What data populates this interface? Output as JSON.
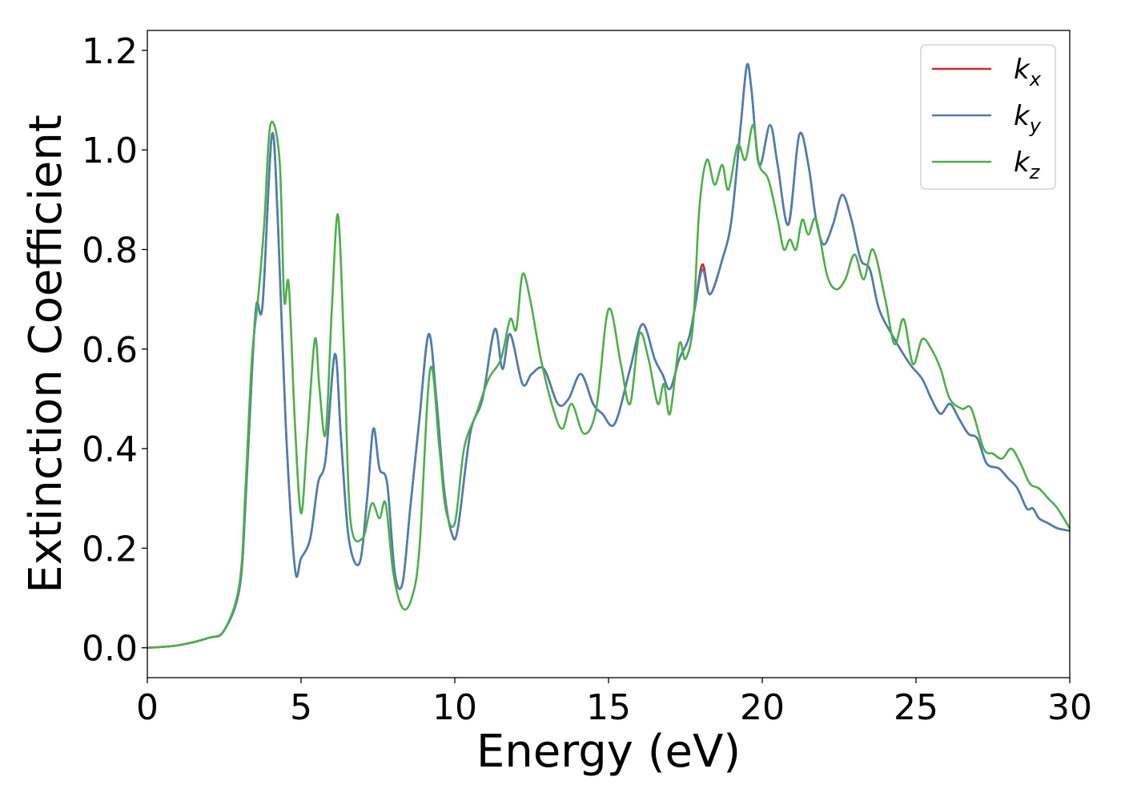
{
  "chart_data": {
    "type": "line",
    "title": "",
    "xlabel": "Energy (eV)",
    "ylabel": "Extinction Coefficient",
    "xlim": [
      0,
      30
    ],
    "ylim": [
      -0.06,
      1.24
    ],
    "xticks": [
      0,
      5,
      10,
      15,
      20,
      25,
      30
    ],
    "xtick_labels": [
      "0",
      "5",
      "10",
      "15",
      "20",
      "25",
      "30"
    ],
    "yticks": [
      0.0,
      0.2,
      0.4,
      0.6,
      0.8,
      1.0,
      1.2
    ],
    "ytick_labels": [
      "0.0",
      "0.2",
      "0.4",
      "0.6",
      "0.8",
      "1.0",
      "1.2"
    ],
    "grid": false,
    "legend_position": "top-right",
    "series": [
      {
        "name": "kx",
        "legend_base": "k",
        "legend_sub": "x",
        "color": "#d62728",
        "x": [
          0,
          1,
          2,
          2.5,
          3.0,
          3.2,
          3.4,
          3.55,
          3.75,
          4.05,
          4.25,
          4.5,
          4.8,
          5.0,
          5.3,
          5.55,
          5.8,
          6.1,
          6.3,
          6.55,
          6.9,
          7.15,
          7.35,
          7.55,
          7.8,
          8.05,
          8.3,
          8.55,
          8.85,
          9.15,
          9.4,
          9.65,
          9.9,
          10.1,
          10.5,
          10.9,
          11.3,
          11.55,
          11.8,
          12.2,
          12.5,
          12.9,
          13.35,
          13.7,
          14.1,
          14.5,
          14.8,
          15.2,
          15.7,
          16.1,
          16.5,
          16.75,
          17.0,
          17.3,
          17.6,
          17.8,
          18.05,
          18.3,
          18.7,
          19.0,
          19.3,
          19.5,
          19.65,
          19.9,
          20.25,
          20.5,
          20.85,
          21.2,
          21.5,
          21.75,
          22.0,
          22.3,
          22.6,
          22.9,
          23.2,
          23.5,
          23.8,
          24.3,
          24.8,
          25.2,
          25.5,
          25.8,
          26.1,
          26.4,
          26.7,
          27.0,
          27.3,
          27.7,
          28.0,
          28.3,
          28.6,
          28.8,
          29.0,
          29.3,
          29.6,
          30.0
        ],
        "y": [
          0.0,
          0.005,
          0.02,
          0.035,
          0.12,
          0.3,
          0.55,
          0.69,
          0.69,
          1.03,
          0.85,
          0.45,
          0.16,
          0.18,
          0.22,
          0.33,
          0.38,
          0.59,
          0.42,
          0.22,
          0.17,
          0.3,
          0.44,
          0.36,
          0.33,
          0.15,
          0.13,
          0.28,
          0.46,
          0.63,
          0.5,
          0.32,
          0.23,
          0.24,
          0.43,
          0.5,
          0.64,
          0.56,
          0.63,
          0.53,
          0.55,
          0.56,
          0.49,
          0.5,
          0.55,
          0.49,
          0.47,
          0.45,
          0.56,
          0.65,
          0.58,
          0.55,
          0.52,
          0.58,
          0.62,
          0.68,
          0.77,
          0.71,
          0.78,
          0.86,
          1.05,
          1.17,
          1.12,
          0.97,
          1.05,
          0.97,
          0.85,
          1.03,
          0.97,
          0.86,
          0.81,
          0.85,
          0.91,
          0.86,
          0.78,
          0.76,
          0.68,
          0.62,
          0.57,
          0.54,
          0.5,
          0.47,
          0.49,
          0.46,
          0.43,
          0.42,
          0.37,
          0.36,
          0.34,
          0.32,
          0.28,
          0.28,
          0.26,
          0.25,
          0.24,
          0.235
        ]
      },
      {
        "name": "ky",
        "legend_base": "k",
        "legend_sub": "y",
        "color": "#4a7fb5",
        "x": [
          0,
          1,
          2,
          2.5,
          3.0,
          3.2,
          3.4,
          3.55,
          3.75,
          4.05,
          4.25,
          4.5,
          4.8,
          5.0,
          5.3,
          5.55,
          5.8,
          6.1,
          6.3,
          6.55,
          6.9,
          7.15,
          7.35,
          7.55,
          7.8,
          8.05,
          8.3,
          8.55,
          8.85,
          9.15,
          9.4,
          9.65,
          9.9,
          10.1,
          10.5,
          10.9,
          11.3,
          11.55,
          11.8,
          12.2,
          12.5,
          12.9,
          13.35,
          13.7,
          14.1,
          14.5,
          14.8,
          15.2,
          15.7,
          16.1,
          16.5,
          16.75,
          17.0,
          17.3,
          17.6,
          17.8,
          18.05,
          18.3,
          18.7,
          19.0,
          19.3,
          19.5,
          19.65,
          19.9,
          20.25,
          20.5,
          20.85,
          21.2,
          21.5,
          21.75,
          22.0,
          22.3,
          22.6,
          22.9,
          23.2,
          23.5,
          23.8,
          24.3,
          24.8,
          25.2,
          25.5,
          25.8,
          26.1,
          26.4,
          26.7,
          27.0,
          27.3,
          27.7,
          28.0,
          28.3,
          28.6,
          28.8,
          29.0,
          29.3,
          29.6,
          30.0
        ],
        "y": [
          0.0,
          0.005,
          0.02,
          0.035,
          0.12,
          0.3,
          0.55,
          0.69,
          0.69,
          1.03,
          0.85,
          0.45,
          0.16,
          0.18,
          0.22,
          0.33,
          0.38,
          0.59,
          0.42,
          0.22,
          0.17,
          0.3,
          0.44,
          0.36,
          0.33,
          0.15,
          0.13,
          0.28,
          0.46,
          0.63,
          0.5,
          0.32,
          0.23,
          0.24,
          0.43,
          0.5,
          0.64,
          0.56,
          0.63,
          0.53,
          0.55,
          0.56,
          0.49,
          0.5,
          0.55,
          0.49,
          0.47,
          0.45,
          0.56,
          0.65,
          0.58,
          0.55,
          0.52,
          0.58,
          0.62,
          0.68,
          0.76,
          0.71,
          0.78,
          0.86,
          1.05,
          1.17,
          1.12,
          0.97,
          1.05,
          0.97,
          0.85,
          1.03,
          0.97,
          0.86,
          0.81,
          0.85,
          0.91,
          0.86,
          0.78,
          0.76,
          0.68,
          0.62,
          0.57,
          0.54,
          0.5,
          0.47,
          0.49,
          0.46,
          0.43,
          0.42,
          0.37,
          0.36,
          0.34,
          0.32,
          0.28,
          0.28,
          0.26,
          0.25,
          0.24,
          0.235
        ]
      },
      {
        "name": "kz",
        "legend_base": "k",
        "legend_sub": "z",
        "color": "#4daf4a",
        "x": [
          0,
          1,
          2,
          2.5,
          3.0,
          3.2,
          3.4,
          3.6,
          3.8,
          4.0,
          4.3,
          4.45,
          4.6,
          4.8,
          5.0,
          5.2,
          5.45,
          5.6,
          5.8,
          6.0,
          6.2,
          6.4,
          6.6,
          7.0,
          7.3,
          7.55,
          7.75,
          8.0,
          8.3,
          8.6,
          8.85,
          9.2,
          9.5,
          9.7,
          10.0,
          10.3,
          10.7,
          11.1,
          11.5,
          11.8,
          12.0,
          12.2,
          12.45,
          12.8,
          13.2,
          13.5,
          13.8,
          14.2,
          14.6,
          15.0,
          15.4,
          15.7,
          16.0,
          16.3,
          16.6,
          16.8,
          17.0,
          17.3,
          17.5,
          17.75,
          17.95,
          18.2,
          18.45,
          18.7,
          18.9,
          19.2,
          19.45,
          19.7,
          19.9,
          20.2,
          20.5,
          20.7,
          20.9,
          21.1,
          21.3,
          21.5,
          21.75,
          22.1,
          22.4,
          22.7,
          23.0,
          23.3,
          23.6,
          24.0,
          24.3,
          24.6,
          24.9,
          25.2,
          25.5,
          25.8,
          26.1,
          26.5,
          26.8,
          27.2,
          27.5,
          27.8,
          28.1,
          28.4,
          28.7,
          29.0,
          29.3,
          29.6,
          30.0
        ],
        "y": [
          0.0,
          0.005,
          0.02,
          0.035,
          0.13,
          0.33,
          0.58,
          0.7,
          0.85,
          1.05,
          0.98,
          0.7,
          0.73,
          0.45,
          0.27,
          0.42,
          0.62,
          0.52,
          0.43,
          0.68,
          0.87,
          0.6,
          0.26,
          0.22,
          0.29,
          0.26,
          0.29,
          0.15,
          0.08,
          0.1,
          0.2,
          0.56,
          0.4,
          0.28,
          0.25,
          0.4,
          0.47,
          0.54,
          0.58,
          0.66,
          0.64,
          0.75,
          0.7,
          0.58,
          0.48,
          0.44,
          0.49,
          0.43,
          0.48,
          0.68,
          0.57,
          0.49,
          0.63,
          0.58,
          0.49,
          0.53,
          0.47,
          0.61,
          0.58,
          0.65,
          0.88,
          0.98,
          0.93,
          0.97,
          0.92,
          1.01,
          0.98,
          1.05,
          0.97,
          0.94,
          0.86,
          0.8,
          0.82,
          0.8,
          0.86,
          0.83,
          0.86,
          0.75,
          0.72,
          0.74,
          0.79,
          0.74,
          0.8,
          0.7,
          0.61,
          0.66,
          0.57,
          0.62,
          0.6,
          0.56,
          0.5,
          0.48,
          0.48,
          0.4,
          0.39,
          0.38,
          0.4,
          0.37,
          0.33,
          0.32,
          0.3,
          0.28,
          0.24
        ]
      }
    ]
  }
}
